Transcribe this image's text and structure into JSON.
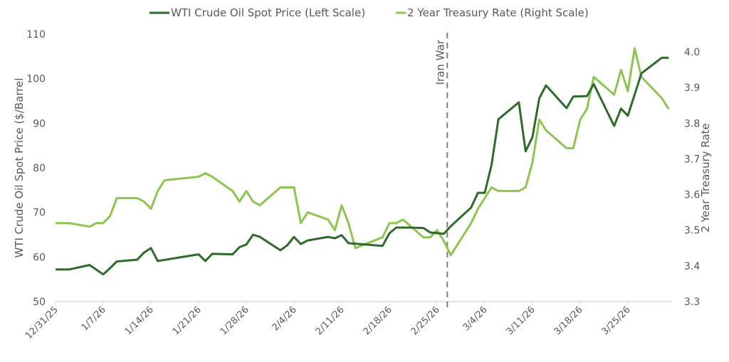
{
  "chart_data": {
    "type": "line",
    "title": "",
    "x_unit": "days since 12/31/25",
    "x_ticks": [
      {
        "day": 0,
        "label": "12/31/25"
      },
      {
        "day": 7,
        "label": "1/7/26"
      },
      {
        "day": 14,
        "label": "1/14/26"
      },
      {
        "day": 21,
        "label": "1/21/26"
      },
      {
        "day": 28,
        "label": "1/28/26"
      },
      {
        "day": 35,
        "label": "2/4/26"
      },
      {
        "day": 42,
        "label": "2/11/26"
      },
      {
        "day": 49,
        "label": "2/18/26"
      },
      {
        "day": 56,
        "label": "2/25/26"
      },
      {
        "day": 63,
        "label": "3/4/26"
      },
      {
        "day": 70,
        "label": "3/11/26"
      },
      {
        "day": 77,
        "label": "3/18/26"
      },
      {
        "day": 84,
        "label": "3/25/26"
      }
    ],
    "xlim": [
      0,
      90
    ],
    "left_axis": {
      "label": "WTI Crude Oil Spot Price ($/Barrel",
      "ylim": [
        50,
        110
      ],
      "ticks": [
        "50",
        "60",
        "70",
        "80",
        "90",
        "100",
        "110"
      ]
    },
    "right_axis": {
      "label": "2 Year Treasury Rate",
      "ylim": [
        3.3,
        4.0
      ],
      "ticks": [
        "3.3",
        "3.4",
        "3.5",
        "3.6",
        "3.7",
        "3.8",
        "3.9",
        "4.0"
      ]
    },
    "annotation": {
      "day": 57.5,
      "label": "Iran War"
    },
    "legend_position": "top",
    "grid": false,
    "series": [
      {
        "name": "WTI Crude Oil Spot Price (Left Scale)",
        "axis": "left",
        "color": "#2e6b2a",
        "points": [
          [
            0,
            57.2
          ],
          [
            2,
            57.2
          ],
          [
            5,
            58.2
          ],
          [
            7,
            56.1
          ],
          [
            8,
            57.5
          ],
          [
            9,
            59.0
          ],
          [
            12,
            59.4
          ],
          [
            13,
            61.0
          ],
          [
            14,
            62.0
          ],
          [
            15,
            59.1
          ],
          [
            21,
            60.6
          ],
          [
            22,
            59.1
          ],
          [
            23,
            60.7
          ],
          [
            26,
            60.6
          ],
          [
            27,
            62.2
          ],
          [
            28,
            62.8
          ],
          [
            29,
            65.0
          ],
          [
            30,
            64.5
          ],
          [
            33,
            61.5
          ],
          [
            34,
            62.6
          ],
          [
            35,
            64.5
          ],
          [
            36,
            62.9
          ],
          [
            37,
            63.7
          ],
          [
            40,
            64.5
          ],
          [
            41,
            64.2
          ],
          [
            42,
            64.9
          ],
          [
            43,
            63.1
          ],
          [
            48,
            62.5
          ],
          [
            49,
            65.3
          ],
          [
            50,
            66.6
          ],
          [
            52,
            66.6
          ],
          [
            54,
            66.5
          ],
          [
            55,
            65.5
          ],
          [
            57,
            65.2
          ],
          [
            58,
            66.9
          ],
          [
            61,
            71.1
          ],
          [
            62,
            74.4
          ],
          [
            63,
            74.4
          ],
          [
            64,
            80.7
          ],
          [
            65,
            90.9
          ],
          [
            68,
            94.7
          ],
          [
            69,
            83.7
          ],
          [
            70,
            86.9
          ],
          [
            71,
            95.6
          ],
          [
            72,
            98.5
          ],
          [
            75,
            93.4
          ],
          [
            76,
            96.0
          ],
          [
            78,
            96.1
          ],
          [
            79,
            98.8
          ],
          [
            82,
            89.4
          ],
          [
            83,
            93.3
          ],
          [
            84,
            91.7
          ],
          [
            86,
            101.2
          ],
          [
            89,
            104.7
          ],
          [
            90,
            104.7
          ]
        ]
      },
      {
        "name": "2 Year Treasury Rate (Right Scale)",
        "axis": "right",
        "color": "#8cc552",
        "points": [
          [
            0,
            3.52
          ],
          [
            2,
            3.52
          ],
          [
            5,
            3.51
          ],
          [
            6,
            3.52
          ],
          [
            7,
            3.52
          ],
          [
            8,
            3.54
          ],
          [
            9,
            3.59
          ],
          [
            12,
            3.59
          ],
          [
            13,
            3.58
          ],
          [
            14,
            3.56
          ],
          [
            15,
            3.61
          ],
          [
            16,
            3.64
          ],
          [
            21,
            3.65
          ],
          [
            22,
            3.66
          ],
          [
            23,
            3.65
          ],
          [
            26,
            3.61
          ],
          [
            27,
            3.58
          ],
          [
            28,
            3.61
          ],
          [
            29,
            3.58
          ],
          [
            30,
            3.57
          ],
          [
            33,
            3.62
          ],
          [
            35,
            3.62
          ],
          [
            36,
            3.52
          ],
          [
            37,
            3.55
          ],
          [
            40,
            3.53
          ],
          [
            41,
            3.5
          ],
          [
            42,
            3.57
          ],
          [
            43,
            3.52
          ],
          [
            44,
            3.45
          ],
          [
            48,
            3.48
          ],
          [
            49,
            3.52
          ],
          [
            50,
            3.52
          ],
          [
            51,
            3.53
          ],
          [
            54,
            3.48
          ],
          [
            55,
            3.48
          ],
          [
            56,
            3.5
          ],
          [
            57,
            3.47
          ],
          [
            58,
            3.43
          ],
          [
            61,
            3.52
          ],
          [
            62,
            3.56
          ],
          [
            64,
            3.62
          ],
          [
            65,
            3.61
          ],
          [
            68,
            3.61
          ],
          [
            69,
            3.62
          ],
          [
            70,
            3.69
          ],
          [
            71,
            3.81
          ],
          [
            72,
            3.78
          ],
          [
            75,
            3.73
          ],
          [
            76,
            3.73
          ],
          [
            77,
            3.81
          ],
          [
            78,
            3.84
          ],
          [
            79,
            3.93
          ],
          [
            82,
            3.88
          ],
          [
            83,
            3.95
          ],
          [
            84,
            3.89
          ],
          [
            85,
            4.01
          ],
          [
            86,
            3.93
          ],
          [
            89,
            3.87
          ],
          [
            90,
            3.84
          ]
        ]
      }
    ]
  }
}
